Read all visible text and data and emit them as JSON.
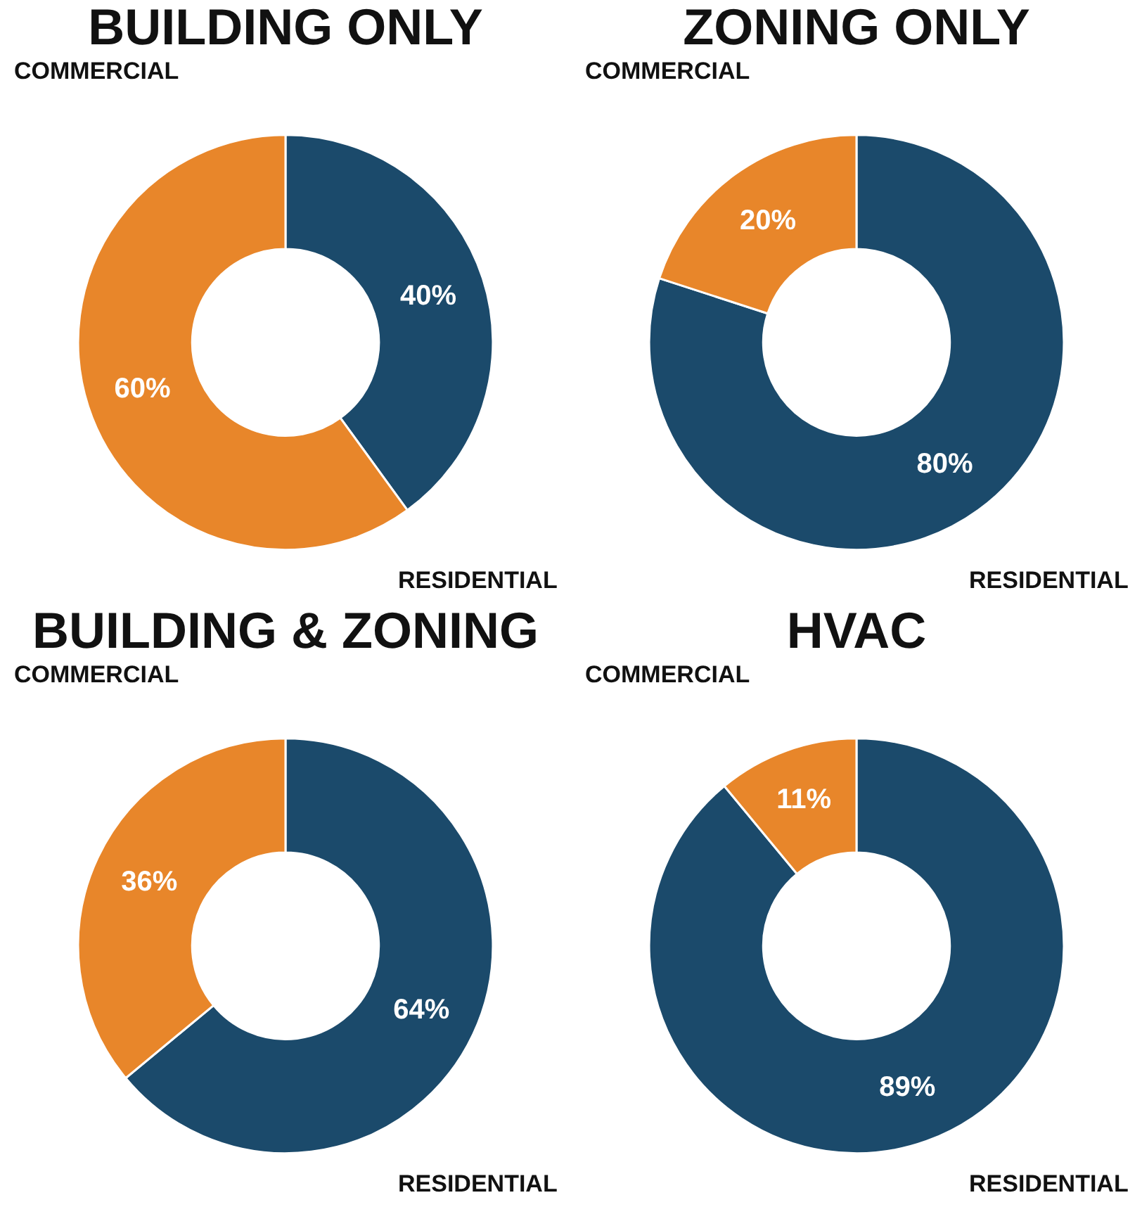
{
  "chart_data": [
    {
      "type": "donut",
      "title": "BUILDING ONLY",
      "categories": [
        "RESIDENTIAL",
        "COMMERCIAL"
      ],
      "values": [
        40,
        60
      ],
      "colors": [
        "#1b4a6b",
        "#e8862a"
      ],
      "value_labels": [
        "40%",
        "60%"
      ],
      "legend": false
    },
    {
      "type": "donut",
      "title": "ZONING ONLY",
      "categories": [
        "RESIDENTIAL",
        "COMMERCIAL"
      ],
      "values": [
        80,
        20
      ],
      "colors": [
        "#1b4a6b",
        "#e8862a"
      ],
      "value_labels": [
        "80%",
        "20%"
      ],
      "legend": false
    },
    {
      "type": "donut",
      "title": "BUILDING & ZONING",
      "categories": [
        "RESIDENTIAL",
        "COMMERCIAL"
      ],
      "values": [
        64,
        36
      ],
      "colors": [
        "#1b4a6b",
        "#e8862a"
      ],
      "value_labels": [
        "64%",
        "36%"
      ],
      "legend": false
    },
    {
      "type": "donut",
      "title": "HVAC",
      "categories": [
        "RESIDENTIAL",
        "COMMERCIAL"
      ],
      "values": [
        89,
        11
      ],
      "colors": [
        "#1b4a6b",
        "#e8862a"
      ],
      "value_labels": [
        "89%",
        "11%"
      ],
      "legend": false
    }
  ]
}
